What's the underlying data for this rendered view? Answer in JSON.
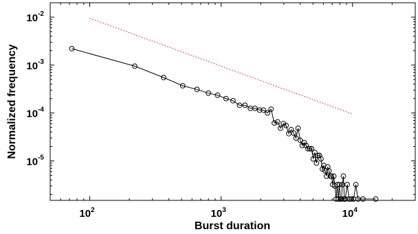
{
  "chart_data": {
    "type": "scatter",
    "title": "",
    "xlabel": "Burst duration",
    "ylabel": "Normalized frequency",
    "xscale": "log",
    "yscale": "log",
    "xlim": [
      50,
      30000
    ],
    "ylim": [
      1.5e-06,
      0.02
    ],
    "grid": false,
    "x_ticks": [
      {
        "base": "10",
        "exp": "2",
        "value": 100
      },
      {
        "base": "10",
        "exp": "3",
        "value": 1000
      },
      {
        "base": "10",
        "exp": "4",
        "value": 10000
      }
    ],
    "y_ticks": [
      {
        "base": "10",
        "exp": "-5",
        "value": 1e-05
      },
      {
        "base": "10",
        "exp": "-4",
        "value": 0.0001
      },
      {
        "base": "10",
        "exp": "-3",
        "value": 0.001
      },
      {
        "base": "10",
        "exp": "-2",
        "value": 0.01
      }
    ],
    "series": [
      {
        "style": "line-markers",
        "color": "#000000",
        "marker": "open-circle",
        "points": [
          [
            73,
            0.0022
          ],
          [
            220,
            0.00095
          ],
          [
            365,
            0.00055
          ],
          [
            510,
            0.00037
          ],
          [
            655,
            0.00031
          ],
          [
            800,
            0.00026
          ],
          [
            940,
            0.000235
          ],
          [
            1090,
            0.0002
          ],
          [
            1230,
            0.00018
          ],
          [
            1380,
            0.000145
          ],
          [
            1520,
            0.000145
          ],
          [
            1670,
            0.000125
          ],
          [
            1810,
            0.000125
          ],
          [
            1960,
            0.000115
          ],
          [
            2100,
            0.000115
          ],
          [
            2250,
            0.0001
          ],
          [
            2400,
            0.00012
          ],
          [
            2540,
            6.2e-05
          ],
          [
            2690,
            6.5e-05
          ],
          [
            2830,
            4.8e-05
          ],
          [
            2980,
            6e-05
          ],
          [
            3120,
            5.5e-05
          ],
          [
            3270,
            3.7e-05
          ],
          [
            3410,
            4.5e-05
          ],
          [
            3560,
            3.8e-05
          ],
          [
            3710,
            3e-05
          ],
          [
            3850,
            4.8e-05
          ],
          [
            4000,
            2.7e-05
          ],
          [
            4140,
            2.1e-05
          ],
          [
            4290,
            2.4e-05
          ],
          [
            4430,
            2.1e-05
          ],
          [
            4580,
            1.8e-05
          ],
          [
            4720,
            1.8e-05
          ],
          [
            4870,
            1.8e-05
          ],
          [
            5020,
            1.1e-05
          ],
          [
            5160,
            1.5e-05
          ],
          [
            5310,
            9e-06
          ],
          [
            5450,
            1.3e-05
          ],
          [
            5600,
            1.3e-05
          ],
          [
            5750,
            1.1e-05
          ],
          [
            5890,
            6.8e-06
          ],
          [
            6040,
            8e-06
          ],
          [
            6180,
            6.2e-06
          ],
          [
            6330,
            4.8e-06
          ],
          [
            6470,
            7.5e-06
          ],
          [
            6620,
            6.2e-06
          ],
          [
            6770,
            4.8e-06
          ],
          [
            6910,
            4.8e-06
          ],
          [
            7060,
            3.2e-06
          ],
          [
            7200,
            4.8e-06
          ],
          [
            7350,
            3e-06
          ],
          [
            7500,
            1.6e-06
          ],
          [
            7640,
            3.2e-06
          ],
          [
            7790,
            1.6e-06
          ],
          [
            7930,
            3.2e-06
          ],
          [
            8080,
            1.6e-06
          ],
          [
            8230,
            1.6e-06
          ],
          [
            8370,
            3.2e-06
          ],
          [
            8520,
            4.8e-06
          ],
          [
            8660,
            1.6e-06
          ],
          [
            8800,
            1.6e-06
          ],
          [
            9100,
            3.2e-06
          ],
          [
            9400,
            1.6e-06
          ],
          [
            9800,
            1.6e-06
          ],
          [
            10200,
            1.6e-06
          ],
          [
            10600,
            3.2e-06
          ],
          [
            11000,
            1.6e-06
          ],
          [
            12000,
            1.6e-06
          ],
          [
            15000,
            1.6e-06
          ]
        ]
      },
      {
        "style": "dotted-line",
        "color": "#e8322b",
        "points": [
          [
            100,
            0.0095
          ],
          [
            10000,
            9.5e-05
          ]
        ]
      }
    ]
  }
}
